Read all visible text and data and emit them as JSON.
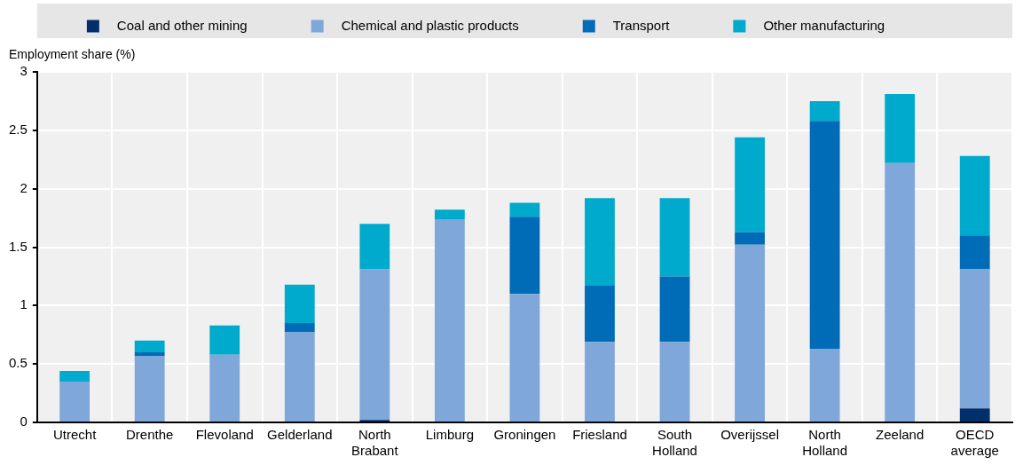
{
  "chart_data": {
    "type": "bar",
    "stacked": true,
    "ylabel": "Employment share (%)",
    "categories": [
      "Utrecht",
      "Drenthe",
      "Flevoland",
      "Gelderland",
      "North Brabant",
      "Limburg",
      "Groningen",
      "Friesland",
      "South Holland",
      "Overijssel",
      "North Holland",
      "Zeeland",
      "OECD average"
    ],
    "series": [
      {
        "name": "Coal and other mining",
        "color": "#002f6c",
        "values": [
          0,
          0,
          0,
          0,
          0.02,
          0,
          0,
          0,
          null,
          0,
          0,
          0,
          0.12
        ]
      },
      {
        "name": "Chemical and plastic products",
        "color": "#7fa7d9",
        "values": [
          0.35,
          0.57,
          0.58,
          0.77,
          1.29,
          1.74,
          1.1,
          0.69,
          0.69,
          1.52,
          0.63,
          2.22,
          1.19
        ]
      },
      {
        "name": "Transport",
        "color": "#006bb6",
        "values": [
          0,
          0.03,
          0,
          0.08,
          0,
          0,
          0.66,
          0.48,
          0.56,
          0.11,
          1.95,
          0,
          0.29
        ]
      },
      {
        "name": "Other manufacturing",
        "color": "#00aacc",
        "values": [
          0.09,
          0.1,
          0.25,
          0.33,
          0.39,
          0.08,
          0.12,
          0.75,
          0.67,
          0.81,
          0.17,
          0.59,
          0.68
        ]
      }
    ],
    "ylim": [
      0,
      3
    ],
    "yticks": [
      0,
      0.5,
      1,
      1.5,
      2,
      2.5,
      3
    ],
    "grid": true,
    "legend": "top"
  }
}
